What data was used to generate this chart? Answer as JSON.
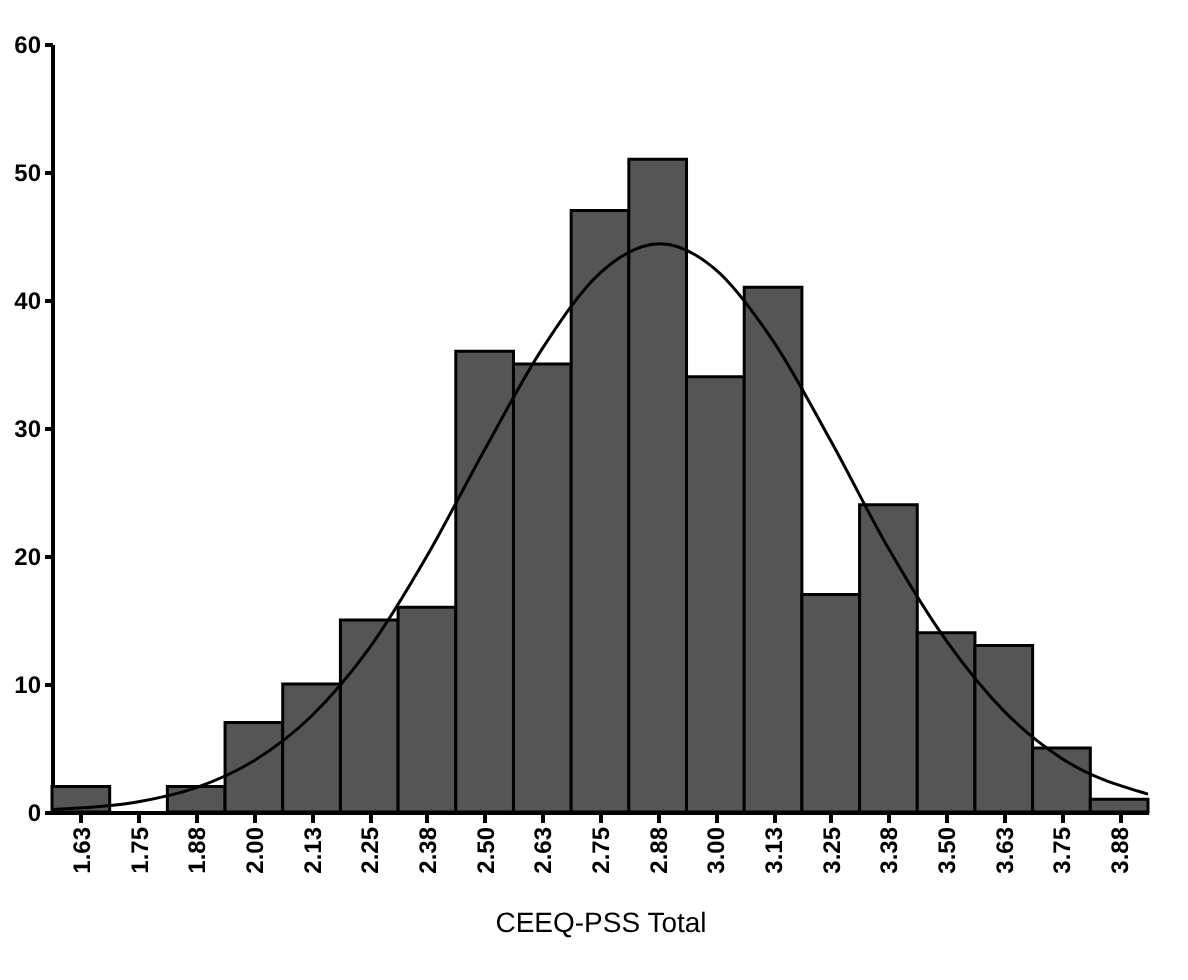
{
  "chart_data": {
    "type": "histogram",
    "xlabel": "CEEQ-PSS Total",
    "bins": [
      1.5625,
      1.6875,
      1.8125,
      1.9375,
      2.0625,
      2.1875,
      2.3125,
      2.4375,
      2.5625,
      2.6875,
      2.8125,
      2.9375,
      3.0625,
      3.1875,
      3.3125,
      3.4375,
      3.5625,
      3.6875,
      3.8125,
      3.9375
    ],
    "values": [
      2,
      0,
      2,
      7,
      10,
      15,
      16,
      36,
      35,
      47,
      51,
      34,
      41,
      17,
      24,
      14,
      13,
      5,
      1
    ],
    "color": "#555555",
    "series": [
      {
        "type": "line",
        "color": "#000000",
        "x": [
          1.5625,
          1.75,
          1.875,
          2.0,
          2.125,
          2.25,
          2.375,
          2.5,
          2.625,
          2.75,
          2.88,
          3.0,
          3.125,
          3.25,
          3.375,
          3.5,
          3.625,
          3.75,
          3.9375
        ],
        "values": [
          0.2,
          0.8,
          1.9,
          4.0,
          7.5,
          12.8,
          20.0,
          28.3,
          36.2,
          42.1,
          44.4,
          42.4,
          36.8,
          29.0,
          20.6,
          13.4,
          7.9,
          4.2,
          1.4
        ]
      }
    ],
    "xlim": [
      1.5625,
      3.9375
    ],
    "xticks": [
      {
        "value": 1.625,
        "label": "1.63"
      },
      {
        "value": 1.75,
        "label": "1.75"
      },
      {
        "value": 1.875,
        "label": "1.88"
      },
      {
        "value": 2.0,
        "label": "2.00"
      },
      {
        "value": 2.125,
        "label": "2.13"
      },
      {
        "value": 2.25,
        "label": "2.25"
      },
      {
        "value": 2.375,
        "label": "2.38"
      },
      {
        "value": 2.5,
        "label": "2.50"
      },
      {
        "value": 2.625,
        "label": "2.63"
      },
      {
        "value": 2.75,
        "label": "2.75"
      },
      {
        "value": 2.875,
        "label": "2.88"
      },
      {
        "value": 3.0,
        "label": "3.00"
      },
      {
        "value": 3.125,
        "label": "3.13"
      },
      {
        "value": 3.25,
        "label": "3.25"
      },
      {
        "value": 3.375,
        "label": "3.38"
      },
      {
        "value": 3.5,
        "label": "3.50"
      },
      {
        "value": 3.625,
        "label": "3.63"
      },
      {
        "value": 3.75,
        "label": "3.75"
      },
      {
        "value": 3.875,
        "label": "3.88"
      }
    ],
    "ylim": [
      0,
      60
    ],
    "yticks": [
      0,
      10,
      20,
      30,
      40,
      50,
      60
    ],
    "grid": false
  }
}
